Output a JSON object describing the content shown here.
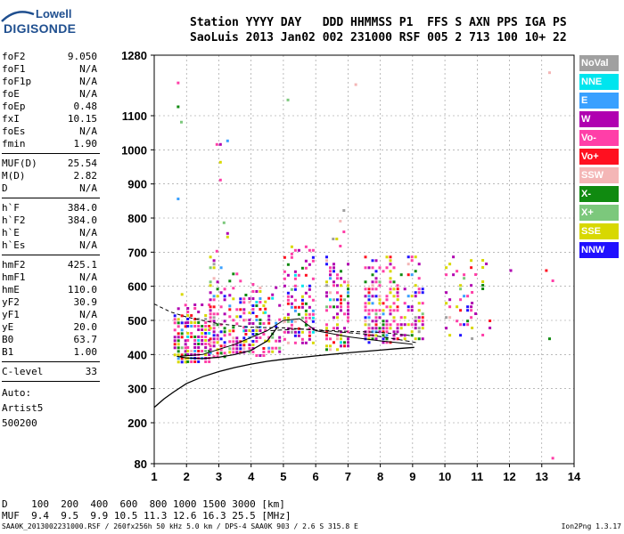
{
  "logo": {
    "brand_small": "Lowell",
    "brand_large": "DIGISONDE"
  },
  "header": {
    "line1": "Station YYYY DAY   DDD HHMMSS P1  FFS S AXN PPS IGA PS",
    "line2": "SaoLuis 2013 Jan02 002 231000 RSF 005 2 713 100 10+ 22"
  },
  "params": {
    "group1": [
      {
        "name": "foF2",
        "value": "9.050"
      },
      {
        "name": "foF1",
        "value": "N/A"
      },
      {
        "name": "foF1p",
        "value": "N/A"
      },
      {
        "name": "foE",
        "value": "N/A"
      },
      {
        "name": "foEp",
        "value": "0.48"
      },
      {
        "name": "fxI",
        "value": "10.15"
      },
      {
        "name": "foEs",
        "value": "N/A"
      },
      {
        "name": "fmin",
        "value": "1.90"
      }
    ],
    "group2": [
      {
        "name": "MUF(D)",
        "value": "25.54"
      },
      {
        "name": "M(D)",
        "value": "2.82"
      },
      {
        "name": "D",
        "value": "N/A"
      }
    ],
    "group3": [
      {
        "name": "h`F",
        "value": "384.0"
      },
      {
        "name": "h`F2",
        "value": "384.0"
      },
      {
        "name": "h`E",
        "value": "N/A"
      },
      {
        "name": "h`Es",
        "value": "N/A"
      }
    ],
    "group4": [
      {
        "name": "hmF2",
        "value": "425.1"
      },
      {
        "name": "hmF1",
        "value": "N/A"
      },
      {
        "name": "hmE",
        "value": "110.0"
      },
      {
        "name": "yF2",
        "value": "30.9"
      },
      {
        "name": "yF1",
        "value": "N/A"
      },
      {
        "name": "yE",
        "value": "20.0"
      },
      {
        "name": "B0",
        "value": "63.7"
      },
      {
        "name": "B1",
        "value": "1.00"
      }
    ],
    "group5": [
      {
        "name": "C-level",
        "value": "33"
      }
    ],
    "auto_lines": [
      "Auto:",
      "Artist5",
      "500200"
    ]
  },
  "legend": [
    {
      "label": "NoVal",
      "color": "#a0a0a0"
    },
    {
      "label": "NNE",
      "color": "#00e5ee"
    },
    {
      "label": "E",
      "color": "#39a0ff"
    },
    {
      "label": "W",
      "color": "#b000b0"
    },
    {
      "label": "Vo-",
      "color": "#ff3fa8"
    },
    {
      "label": "Vo+",
      "color": "#ff1020"
    },
    {
      "label": "SSW",
      "color": "#f4b6b6"
    },
    {
      "label": "X-",
      "color": "#108a10"
    },
    {
      "label": "X+",
      "color": "#7cc87c"
    },
    {
      "label": "SSE",
      "color": "#d8d800"
    },
    {
      "label": "NNW",
      "color": "#2010ff"
    }
  ],
  "muf_table": {
    "line1": "D    100  200  400  600  800 1000 1500 3000 [km]",
    "line2": "MUF  9.4  9.5  9.9 10.5 11.3 12.6 16.3 25.5 [MHz]"
  },
  "footer": {
    "left": "SAA0K_2013002231000.RSF / 260fx256h 50 kHz 5.0 km / DPS-4 SAA0K 903 / 2.6 S 315.8 E",
    "right": "Ion2Png 1.3.17"
  },
  "chart_data": {
    "type": "scatter",
    "title": "",
    "xlabel": "",
    "ylabel": "",
    "xlim": [
      1,
      14
    ],
    "ylim": [
      80,
      1280
    ],
    "x_ticks": [
      1,
      2,
      3,
      4,
      5,
      6,
      7,
      8,
      9,
      10,
      11,
      12,
      13,
      14
    ],
    "y_ticks": [
      80,
      200,
      300,
      400,
      500,
      600,
      700,
      800,
      900,
      1000,
      1100,
      1280
    ],
    "grid": true,
    "legend_position": "right",
    "echo_blocks": [
      {
        "f": [
          1.6,
          2.0
        ],
        "h": [
          380,
          580
        ],
        "density": 0.65
      },
      {
        "f": [
          2.0,
          2.7
        ],
        "h": [
          375,
          560
        ],
        "density": 0.8
      },
      {
        "f": [
          2.7,
          3.2
        ],
        "h": [
          390,
          700
        ],
        "density": 0.55
      },
      {
        "f": [
          2.9,
          3.3
        ],
        "h": [
          700,
          1030
        ],
        "density": 0.22
      },
      {
        "f": [
          3.3,
          3.8
        ],
        "h": [
          400,
          640
        ],
        "density": 0.6
      },
      {
        "f": [
          3.8,
          4.4
        ],
        "h": [
          395,
          620
        ],
        "density": 0.55
      },
      {
        "f": [
          4.4,
          4.9
        ],
        "h": [
          410,
          600
        ],
        "density": 0.45
      },
      {
        "f": [
          5.0,
          5.9
        ],
        "h": [
          430,
          730
        ],
        "density": 0.55
      },
      {
        "f": [
          6.3,
          7.0
        ],
        "h": [
          410,
          700
        ],
        "density": 0.55
      },
      {
        "f": [
          6.5,
          6.9
        ],
        "h": [
          700,
          920
        ],
        "density": 0.12
      },
      {
        "f": [
          7.5,
          8.5
        ],
        "h": [
          430,
          700
        ],
        "density": 0.6
      },
      {
        "f": [
          8.5,
          9.3
        ],
        "h": [
          440,
          690
        ],
        "density": 0.35
      },
      {
        "f": [
          10.0,
          10.8
        ],
        "h": [
          450,
          690
        ],
        "density": 0.22
      },
      {
        "f": [
          10.8,
          11.4
        ],
        "h": [
          450,
          680
        ],
        "density": 0.18
      }
    ],
    "profile_curve": {
      "frequency_mhz": [
        1.0,
        1.3,
        1.6,
        2.0,
        2.5,
        3.0,
        3.5,
        4.0,
        4.5,
        5.0,
        6.0,
        7.0,
        8.0,
        8.5,
        9.05
      ],
      "height_km": [
        245,
        270,
        290,
        315,
        335,
        350,
        362,
        372,
        380,
        386,
        396,
        405,
        413,
        417,
        421
      ]
    },
    "trace_o": {
      "frequency_mhz": [
        1.7,
        2.0,
        2.5,
        3.0,
        3.5,
        4.0,
        4.5,
        4.8
      ],
      "height_km": [
        395,
        390,
        388,
        392,
        400,
        412,
        440,
        478
      ]
    },
    "trace_upper": {
      "frequency_mhz": [
        1.0,
        1.5,
        2.0,
        3.0,
        4.0,
        5.0,
        6.0,
        7.0,
        8.0,
        8.5,
        9.0
      ],
      "height_km": [
        548,
        525,
        510,
        490,
        480,
        478,
        472,
        468,
        465,
        460,
        455
      ]
    },
    "trace_x": {
      "frequency_mhz": [
        1.8,
        2.5,
        3.5,
        4.5,
        5.0,
        5.5,
        6.0,
        7.0,
        8.0,
        9.0
      ],
      "height_km": [
        395,
        400,
        430,
        470,
        500,
        505,
        470,
        452,
        440,
        430
      ]
    },
    "trace_dashed": {
      "frequency_mhz": [
        4.6,
        5.5,
        6.5,
        7.5,
        8.5,
        9.1
      ],
      "height_km": [
        470,
        475,
        468,
        460,
        445,
        435
      ]
    },
    "isolated_points": [
      {
        "f": 1.7,
        "h": 1200
      },
      {
        "f": 1.7,
        "h": 1130
      },
      {
        "f": 1.8,
        "h": 1085
      },
      {
        "f": 1.7,
        "h": 860
      },
      {
        "f": 5.1,
        "h": 1150
      },
      {
        "f": 7.2,
        "h": 1195
      },
      {
        "f": 13.2,
        "h": 1230
      },
      {
        "f": 13.1,
        "h": 650
      },
      {
        "f": 13.3,
        "h": 620
      },
      {
        "f": 13.2,
        "h": 450
      },
      {
        "f": 13.3,
        "h": 100
      },
      {
        "f": 12.0,
        "h": 650
      }
    ]
  }
}
